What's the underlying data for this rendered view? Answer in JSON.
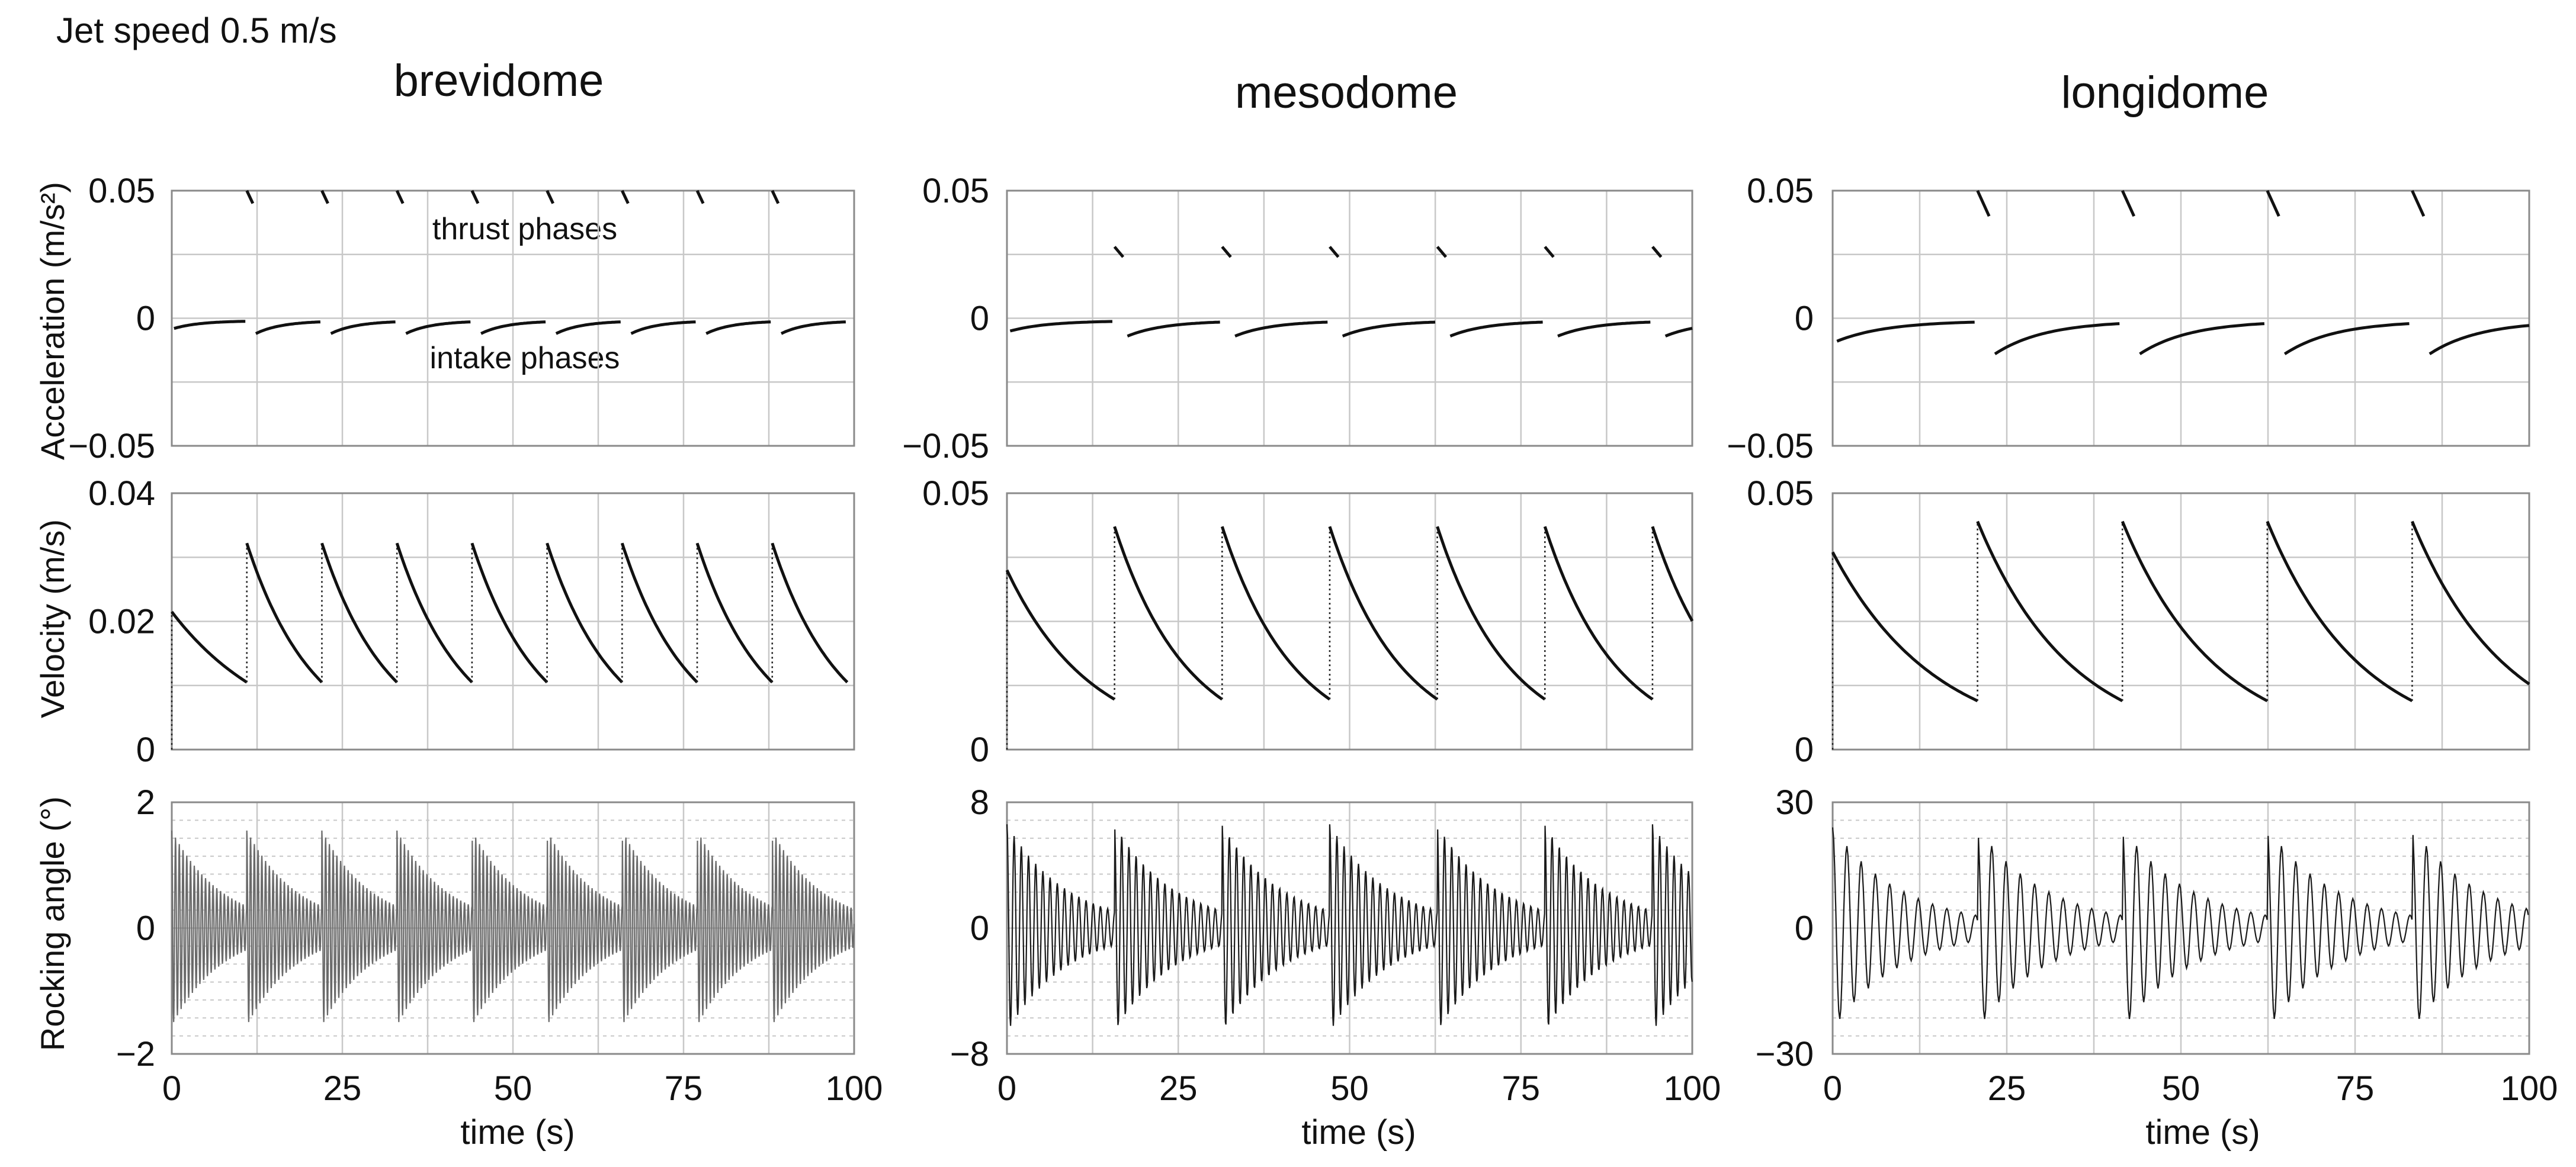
{
  "figure": {
    "header": "Jet speed 0.5 m/s",
    "ylabels": {
      "acceleration": "Acceleration (m/s²)",
      "velocity": "Velocity (m/s)",
      "rocking": "Rocking angle (°)"
    },
    "xlabel": "time (s)",
    "annotations": {
      "thrust": "thrust phases",
      "intake": "intake phases"
    }
  },
  "chart_data": [
    {
      "column": "brevidome",
      "title": "brevidome",
      "type": "line",
      "xlim": [
        0,
        100
      ],
      "x_ticks": [
        "0",
        "25",
        "50",
        "75",
        "100"
      ],
      "pulse_period_s": 11,
      "pulse_times_s": [
        0,
        11,
        22,
        33,
        44,
        55,
        66,
        77,
        88
      ],
      "acceleration": {
        "ylabel": "Acceleration (m/s²)",
        "ylim": [
          -0.05,
          0.05
        ],
        "y_ticks": [
          "0.05",
          "0",
          "−0.05"
        ],
        "thrust_phase_start": 0.05,
        "thrust_phase_end": 0.045,
        "intake_phase_start": -0.006,
        "intake_phase_end": -0.001,
        "first_intake_start": -0.004
      },
      "velocity": {
        "ylabel": "Velocity (m/s)",
        "ylim": [
          0,
          0.04
        ],
        "y_ticks": [
          "0.04",
          "0.02",
          "0"
        ],
        "first_peak": 0.0215,
        "peak": 0.0322,
        "trough": 0.0105
      },
      "rocking_angle": {
        "ylabel": "Rocking angle (°)",
        "ylim": [
          -2,
          2
        ],
        "y_ticks": [
          "2",
          "0",
          "−2"
        ],
        "peak_amplitude_deg": 1.55,
        "trough_amplitude_deg": 0.35,
        "oscillation_period_s": 0.55
      }
    },
    {
      "column": "mesodome",
      "title": "mesodome",
      "type": "line",
      "xlim": [
        0,
        100
      ],
      "x_ticks": [
        "0",
        "25",
        "50",
        "75",
        "100"
      ],
      "pulse_period_s": 15.7,
      "pulse_times_s": [
        0,
        15.7,
        31.4,
        47.1,
        62.8,
        78.5,
        94.2
      ],
      "acceleration": {
        "ylabel": "Acceleration (m/s²)",
        "ylim": [
          -0.05,
          0.05
        ],
        "y_ticks": [
          "0.05",
          "0",
          "−0.05"
        ],
        "thrust_phase_start": 0.028,
        "thrust_phase_end": 0.024,
        "intake_phase_start": -0.007,
        "intake_phase_end": -0.001,
        "first_intake_start": -0.005
      },
      "velocity": {
        "ylabel": "Velocity (m/s)",
        "ylim": [
          0,
          0.05
        ],
        "y_ticks": [
          "0.05",
          "0"
        ],
        "first_peak": 0.035,
        "peak": 0.0435,
        "trough": 0.0098
      },
      "rocking_angle": {
        "ylabel": "Rocking angle (°)",
        "ylim": [
          -8,
          8
        ],
        "y_ticks": [
          "8",
          "0",
          "−8"
        ],
        "peak_amplitude_deg": 6.6,
        "trough_amplitude_deg": 1.1,
        "oscillation_period_s": 1.05
      }
    },
    {
      "column": "longidome",
      "title": "longidome",
      "type": "line",
      "xlim": [
        0,
        100
      ],
      "x_ticks": [
        "0",
        "25",
        "50",
        "75",
        "100"
      ],
      "pulse_period_s": 20.8,
      "pulse_times_s": [
        0,
        20.8,
        41.6,
        62.4,
        83.2
      ],
      "acceleration": {
        "ylabel": "Acceleration (m/s²)",
        "ylim": [
          -0.05,
          0.05
        ],
        "y_ticks": [
          "0.05",
          "0",
          "−0.05"
        ],
        "thrust_phase_start": 0.05,
        "thrust_phase_end": 0.04,
        "intake_phase_start": -0.014,
        "intake_phase_end": -0.001,
        "first_intake_start": -0.009
      },
      "velocity": {
        "ylabel": "Velocity (m/s)",
        "ylim": [
          0,
          0.05
        ],
        "y_ticks": [
          "0.05",
          "0"
        ],
        "first_peak": 0.0385,
        "peak": 0.0445,
        "trough": 0.0095
      },
      "rocking_angle": {
        "ylabel": "Rocking angle (°)",
        "ylim": [
          -30,
          30
        ],
        "y_ticks": [
          "30",
          "0",
          "−30"
        ],
        "peak_amplitude_deg": 24,
        "trough_amplitude_deg": 3,
        "oscillation_period_s": 2.05
      }
    }
  ]
}
